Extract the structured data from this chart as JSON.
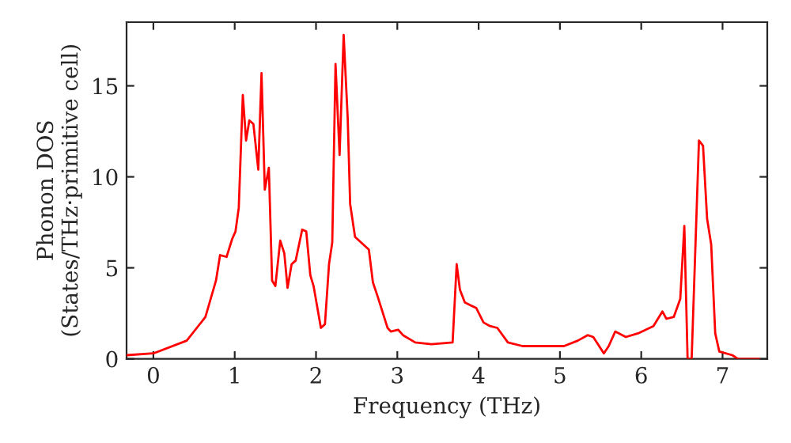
{
  "chart_data": {
    "type": "line",
    "xlabel": "Frequency (THz)",
    "ylabel": "Phonon DOS\n(States/THz·primitive cell)",
    "xlim": [
      -0.33,
      7.55
    ],
    "ylim": [
      0,
      18.5
    ],
    "xticks": [
      0,
      1,
      2,
      3,
      4,
      5,
      6,
      7
    ],
    "yticks": [
      0,
      5,
      10,
      15
    ],
    "grid": false,
    "legend": false,
    "marker": "none",
    "line_style": "solid",
    "series": [
      {
        "color": "#ff0000",
        "x": [
          -0.33,
          0,
          0.41,
          0.64,
          0.77,
          0.82,
          0.9,
          0.97,
          1.01,
          1.05,
          1.1,
          1.14,
          1.18,
          1.23,
          1.29,
          1.33,
          1.37,
          1.42,
          1.46,
          1.5,
          1.56,
          1.61,
          1.65,
          1.7,
          1.75,
          1.83,
          1.88,
          1.93,
          1.97,
          2.06,
          2.11,
          2.16,
          2.2,
          2.24,
          2.29,
          2.34,
          2.39,
          2.42,
          2.48,
          2.65,
          2.7,
          2.76,
          2.88,
          2.92,
          3.01,
          3.07,
          3.22,
          3.42,
          3.68,
          3.73,
          3.77,
          3.83,
          3.92,
          3.97,
          4.06,
          4.14,
          4.23,
          4.36,
          4.54,
          4.8,
          5.05,
          5.22,
          5.34,
          5.41,
          5.54,
          5.6,
          5.68,
          5.81,
          5.96,
          6.15,
          6.26,
          6.31,
          6.4,
          6.48,
          6.53,
          6.57,
          6.62,
          6.71,
          6.76,
          6.81,
          6.86,
          6.91,
          6.96,
          7.12,
          7.19,
          7.45
        ],
        "values": [
          0.2,
          0.3,
          1.0,
          2.3,
          4.3,
          5.7,
          5.6,
          6.6,
          7.0,
          8.3,
          14.5,
          12.0,
          13.1,
          12.9,
          10.4,
          15.7,
          9.3,
          10.5,
          4.3,
          4.0,
          6.5,
          5.8,
          3.9,
          5.2,
          5.4,
          7.1,
          7.0,
          4.6,
          4.0,
          1.7,
          1.9,
          5.2,
          6.4,
          16.2,
          11.2,
          17.8,
          13.2,
          8.5,
          6.7,
          6.0,
          4.2,
          3.4,
          1.7,
          1.5,
          1.6,
          1.3,
          0.9,
          0.8,
          0.9,
          5.2,
          3.8,
          3.1,
          2.9,
          2.8,
          2.0,
          1.8,
          1.7,
          0.9,
          0.7,
          0.7,
          0.7,
          1.0,
          1.3,
          1.2,
          0.3,
          0.7,
          1.5,
          1.2,
          1.4,
          1.8,
          2.6,
          2.2,
          2.3,
          3.3,
          7.3,
          0,
          0,
          12.0,
          11.7,
          7.7,
          6.3,
          1.4,
          0.4,
          0.2,
          0,
          0
        ]
      }
    ]
  }
}
